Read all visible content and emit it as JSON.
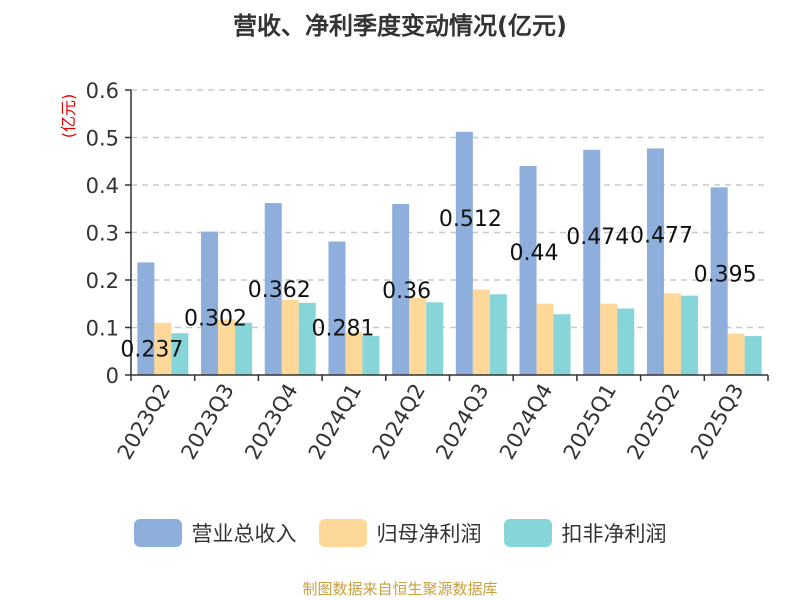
{
  "chart_data": {
    "type": "bar",
    "title": "营收、净利季度变动情况(亿元)",
    "ylabel": "(亿元)",
    "xlabel": "",
    "ylim": [
      0,
      0.6
    ],
    "yticks": [
      "0",
      "0.1",
      "0.2",
      "0.3",
      "0.4",
      "0.5",
      "0.6"
    ],
    "grid": true,
    "legend_position": "bottom",
    "categories": [
      "2023Q2",
      "2023Q3",
      "2023Q4",
      "2024Q1",
      "2024Q2",
      "2024Q3",
      "2024Q4",
      "2025Q1",
      "2025Q2",
      "2025Q3"
    ],
    "series": [
      {
        "name": "营业总收入",
        "color": "#8eaedb",
        "values": [
          0.237,
          0.302,
          0.362,
          0.281,
          0.36,
          0.512,
          0.44,
          0.474,
          0.477,
          0.395
        ],
        "labels": [
          "0.237",
          "0.302",
          "0.362",
          "0.281",
          "0.36",
          "0.512",
          "0.44",
          "0.474",
          "0.477",
          "0.395"
        ]
      },
      {
        "name": "归母净利润",
        "color": "#fdd899",
        "values": [
          0.11,
          0.117,
          0.158,
          0.09,
          0.163,
          0.18,
          0.15,
          0.15,
          0.172,
          0.087
        ]
      },
      {
        "name": "扣非净利润",
        "color": "#86d5d8",
        "values": [
          0.088,
          0.11,
          0.152,
          0.082,
          0.153,
          0.17,
          0.128,
          0.14,
          0.167,
          0.082
        ]
      }
    ]
  },
  "footer": {
    "source": "制图数据来自恒生聚源数据库"
  }
}
